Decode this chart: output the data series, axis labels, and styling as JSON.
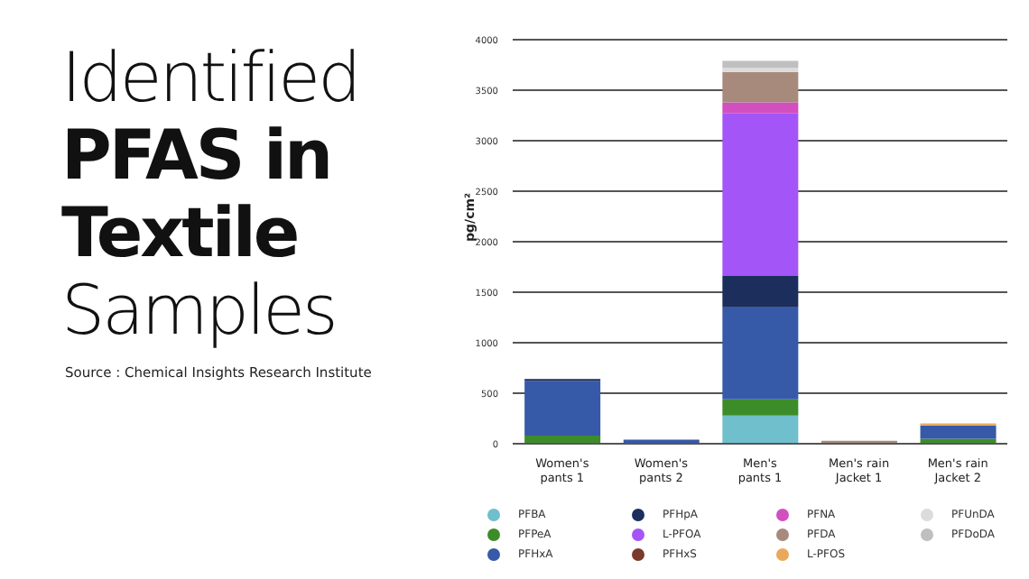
{
  "chart_data": {
    "type": "bar",
    "stacked": true,
    "title": "Identified PFAS in Textile Samples",
    "annotations": [
      "Source : Chemical Insights Research Institute"
    ],
    "ylabel": "pg/cm²",
    "categories": [
      "Women's pants 1",
      "Women's pants 2",
      "Men's pants 1",
      "Men's rain Jacket 1",
      "Men's rain Jacket 2"
    ],
    "series": [
      {
        "name": "PFBA",
        "color": "#6fbfcc",
        "values": [
          null,
          null,
          280,
          null,
          null
        ]
      },
      {
        "name": "PFPeA",
        "color": "#3d8c2a",
        "values": [
          80,
          null,
          160,
          null,
          50
        ]
      },
      {
        "name": "PFHxA",
        "color": "#3659a8",
        "values": [
          540,
          40,
          910,
          null,
          130
        ]
      },
      {
        "name": "PFHpA",
        "color": "#1b2e5c",
        "values": [
          20,
          null,
          310,
          null,
          null
        ]
      },
      {
        "name": "L-PFOA",
        "color": "#a455f7",
        "values": [
          null,
          null,
          1610,
          null,
          null
        ]
      },
      {
        "name": "PFHxS",
        "color": "#7a3b2a",
        "values": [
          null,
          null,
          null,
          null,
          null
        ]
      },
      {
        "name": "PFNA",
        "color": "#d14fbf",
        "values": [
          null,
          null,
          110,
          null,
          null
        ]
      },
      {
        "name": "PFDA",
        "color": "#a88a7c",
        "values": [
          null,
          null,
          300,
          30,
          null
        ]
      },
      {
        "name": "L-PFOS",
        "color": "#e8a95a",
        "values": [
          null,
          null,
          null,
          null,
          20
        ]
      },
      {
        "name": "PFUnDA",
        "color": "#dcdcdc",
        "values": [
          null,
          null,
          40,
          null,
          null
        ]
      },
      {
        "name": "PFDoDA",
        "color": "#bfbfbf",
        "values": [
          null,
          null,
          70,
          null,
          null
        ]
      }
    ],
    "ylim": [
      0,
      4000
    ],
    "yticks": [
      0,
      500,
      1000,
      1500,
      2000,
      2500,
      3000,
      3500,
      4000
    ],
    "grid": "y",
    "legend": "bottom"
  }
}
